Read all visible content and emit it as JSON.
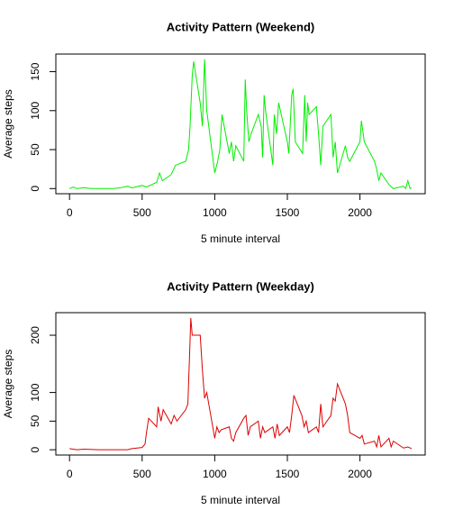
{
  "chart_data": [
    {
      "type": "line",
      "title": "Activity Pattern (Weekend)",
      "xlabel": "5 minute interval",
      "ylabel": "Average steps",
      "color": "#00ee00",
      "x": [
        0,
        25,
        50,
        100,
        150,
        200,
        300,
        350,
        400,
        430,
        500,
        530,
        600,
        620,
        640,
        700,
        730,
        800,
        820,
        830,
        845,
        855,
        900,
        915,
        930,
        945,
        1000,
        1020,
        1035,
        1050,
        1100,
        1115,
        1130,
        1145,
        1200,
        1210,
        1220,
        1235,
        1250,
        1300,
        1320,
        1330,
        1340,
        1350,
        1400,
        1410,
        1425,
        1440,
        1500,
        1510,
        1530,
        1540,
        1555,
        1605,
        1620,
        1630,
        1640,
        1650,
        1700,
        1715,
        1730,
        1745,
        1800,
        1815,
        1830,
        1845,
        1900,
        1915,
        1930,
        2000,
        2010,
        2030,
        2100,
        2115,
        2130,
        2145,
        2200,
        2230,
        2300,
        2315,
        2330,
        2345,
        2355
      ],
      "values": [
        0,
        2,
        0,
        1,
        0,
        0,
        0,
        1,
        3,
        1,
        4,
        2,
        8,
        20,
        10,
        18,
        30,
        35,
        50,
        80,
        145,
        163,
        110,
        80,
        166,
        100,
        20,
        35,
        50,
        95,
        45,
        60,
        35,
        55,
        35,
        140,
        100,
        60,
        70,
        95,
        80,
        40,
        120,
        100,
        30,
        95,
        70,
        110,
        60,
        45,
        120,
        128,
        60,
        45,
        120,
        60,
        110,
        95,
        105,
        70,
        30,
        80,
        95,
        40,
        60,
        20,
        55,
        40,
        35,
        60,
        87,
        60,
        35,
        25,
        10,
        20,
        5,
        0,
        3,
        0,
        10,
        0,
        1
      ],
      "xlim": [
        -94.2,
        2449.2
      ],
      "xticks": [
        0,
        500,
        1000,
        1500,
        2000
      ],
      "ylim": [
        -6.6,
        172.6
      ],
      "yticks": [
        0,
        50,
        100,
        150
      ]
    },
    {
      "type": "line",
      "title": "Activity Pattern (Weekday)",
      "xlabel": "5 minute interval",
      "ylabel": "Average steps",
      "color": "#dd0000",
      "x": [
        0,
        50,
        100,
        200,
        300,
        400,
        430,
        500,
        520,
        530,
        545,
        600,
        610,
        630,
        645,
        700,
        720,
        740,
        800,
        815,
        830,
        835,
        845,
        900,
        915,
        930,
        945,
        1000,
        1015,
        1030,
        1045,
        1100,
        1115,
        1130,
        1145,
        1200,
        1215,
        1230,
        1245,
        1300,
        1315,
        1330,
        1345,
        1400,
        1415,
        1430,
        1445,
        1500,
        1515,
        1530,
        1545,
        1600,
        1615,
        1630,
        1645,
        1700,
        1715,
        1730,
        1745,
        1800,
        1815,
        1830,
        1845,
        1900,
        1915,
        1930,
        2000,
        2015,
        2030,
        2100,
        2115,
        2130,
        2145,
        2200,
        2215,
        2230,
        2300,
        2330,
        2355
      ],
      "values": [
        2,
        0,
        1,
        0,
        0,
        0,
        2,
        4,
        10,
        30,
        55,
        40,
        75,
        50,
        70,
        45,
        60,
        50,
        70,
        80,
        190,
        230,
        200,
        200,
        140,
        90,
        100,
        20,
        40,
        30,
        35,
        40,
        20,
        15,
        30,
        55,
        60,
        25,
        40,
        50,
        20,
        40,
        30,
        40,
        20,
        45,
        25,
        40,
        30,
        60,
        95,
        60,
        40,
        50,
        30,
        40,
        30,
        80,
        40,
        60,
        90,
        85,
        115,
        80,
        60,
        30,
        20,
        25,
        10,
        15,
        5,
        25,
        5,
        20,
        5,
        15,
        3,
        5,
        2
      ],
      "xlim": [
        -94.2,
        2449.2
      ],
      "xticks": [
        0,
        500,
        1000,
        1500,
        2000
      ],
      "ylim": [
        -9.2,
        239.4
      ],
      "yticks": [
        0,
        50,
        100,
        200
      ]
    }
  ]
}
